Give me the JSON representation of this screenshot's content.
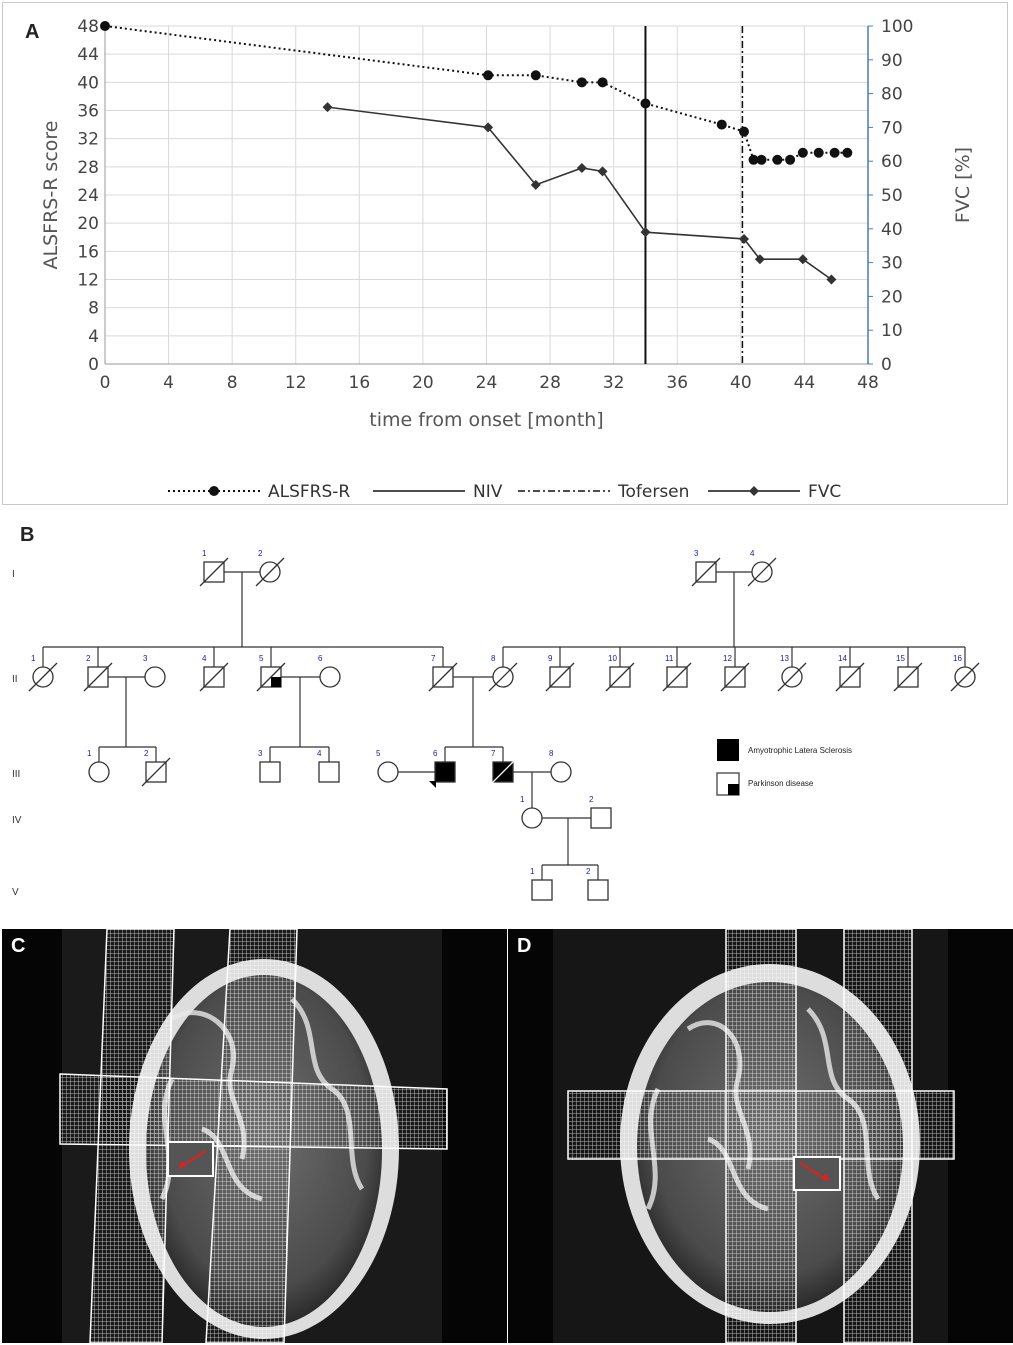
{
  "panels": {
    "a": "A",
    "b": "B",
    "c": "C",
    "d": "D"
  },
  "chart_data": {
    "type": "line",
    "title": "",
    "xlabel": "time from onset [month]",
    "ylabel": "ALSFRS-R score",
    "y2label": "FVC [%]",
    "xlim": [
      0,
      48
    ],
    "ylim": [
      0,
      48
    ],
    "y2lim": [
      0,
      100
    ],
    "x_ticks": [
      0,
      4,
      8,
      12,
      16,
      20,
      24,
      28,
      32,
      36,
      40,
      44,
      48
    ],
    "y_ticks": [
      0,
      4,
      8,
      12,
      16,
      20,
      24,
      28,
      32,
      36,
      40,
      44,
      48
    ],
    "y2_ticks": [
      0,
      10,
      20,
      30,
      40,
      50,
      60,
      70,
      80,
      90,
      100
    ],
    "grid": true,
    "legend_position": "bottom",
    "series": [
      {
        "name": "ALSFRS-R",
        "axis": "left",
        "style": "dotted",
        "marker": "circle",
        "color": "#111111",
        "points": [
          [
            0,
            48
          ],
          [
            24.1,
            41
          ],
          [
            27.1,
            41
          ],
          [
            30,
            40
          ],
          [
            31.3,
            40
          ],
          [
            34,
            37
          ],
          [
            38.8,
            34
          ],
          [
            40.2,
            33
          ],
          [
            40.8,
            29
          ],
          [
            41.3,
            29
          ],
          [
            42.3,
            29
          ],
          [
            43.1,
            29
          ],
          [
            43.9,
            30
          ],
          [
            44.9,
            30
          ],
          [
            45.9,
            30
          ],
          [
            46.7,
            30
          ]
        ]
      },
      {
        "name": "FVC",
        "axis": "right",
        "style": "solid",
        "marker": "diamond",
        "color": "#333333",
        "points": [
          [
            14,
            76
          ],
          [
            24.1,
            70
          ],
          [
            27.1,
            53
          ],
          [
            30,
            58
          ],
          [
            31.3,
            57
          ],
          [
            34,
            39
          ],
          [
            40.2,
            37
          ],
          [
            41.2,
            31
          ],
          [
            43.9,
            31
          ],
          [
            45.7,
            25
          ]
        ]
      }
    ],
    "vertical_lines": [
      {
        "name": "NIV",
        "x": 34,
        "style": "solid"
      },
      {
        "name": "Tofersen",
        "x": 40.1,
        "style": "dashdot"
      }
    ],
    "legend": [
      "ALSFRS-R",
      "NIV",
      "Tofersen",
      "FVC"
    ]
  },
  "pedigree": {
    "generations": [
      "I",
      "II",
      "III",
      "IV",
      "V"
    ],
    "legend": {
      "als": "Amyotrophic Latera Sclerosis",
      "parkinson": "Parkinson disease"
    },
    "colors": {
      "line": "#333333",
      "number": "#1a1aa6"
    },
    "individuals": [
      {
        "gen": "I",
        "id": "1",
        "sex": "male",
        "deceased": true,
        "status": "unaffected"
      },
      {
        "gen": "I",
        "id": "2",
        "sex": "female",
        "deceased": true,
        "status": "unaffected"
      },
      {
        "gen": "I",
        "id": "3",
        "sex": "male",
        "deceased": true,
        "status": "unaffected"
      },
      {
        "gen": "I",
        "id": "4",
        "sex": "female",
        "deceased": true,
        "status": "unaffected"
      },
      {
        "gen": "II",
        "id": "1",
        "sex": "female",
        "deceased": true,
        "status": "unaffected"
      },
      {
        "gen": "II",
        "id": "2",
        "sex": "male",
        "deceased": true,
        "status": "unaffected"
      },
      {
        "gen": "II",
        "id": "3",
        "sex": "female",
        "deceased": false,
        "status": "unaffected"
      },
      {
        "gen": "II",
        "id": "4",
        "sex": "male",
        "deceased": true,
        "status": "unaffected"
      },
      {
        "gen": "II",
        "id": "5",
        "sex": "male",
        "deceased": true,
        "status": "parkinson"
      },
      {
        "gen": "II",
        "id": "6",
        "sex": "female",
        "deceased": false,
        "status": "unaffected"
      },
      {
        "gen": "II",
        "id": "7",
        "sex": "male",
        "deceased": true,
        "status": "unaffected"
      },
      {
        "gen": "II",
        "id": "8",
        "sex": "female",
        "deceased": true,
        "status": "unaffected"
      },
      {
        "gen": "II",
        "id": "9",
        "sex": "male",
        "deceased": true,
        "status": "unaffected"
      },
      {
        "gen": "II",
        "id": "10",
        "sex": "male",
        "deceased": true,
        "status": "unaffected"
      },
      {
        "gen": "II",
        "id": "11",
        "sex": "male",
        "deceased": true,
        "status": "unaffected"
      },
      {
        "gen": "II",
        "id": "12",
        "sex": "male",
        "deceased": true,
        "status": "unaffected"
      },
      {
        "gen": "II",
        "id": "13",
        "sex": "female",
        "deceased": true,
        "status": "unaffected"
      },
      {
        "gen": "II",
        "id": "14",
        "sex": "male",
        "deceased": true,
        "status": "unaffected"
      },
      {
        "gen": "II",
        "id": "15",
        "sex": "male",
        "deceased": true,
        "status": "unaffected"
      },
      {
        "gen": "II",
        "id": "16",
        "sex": "female",
        "deceased": true,
        "status": "unaffected"
      },
      {
        "gen": "III",
        "id": "1",
        "sex": "female",
        "deceased": false,
        "status": "unaffected"
      },
      {
        "gen": "III",
        "id": "2",
        "sex": "male",
        "deceased": true,
        "status": "unaffected"
      },
      {
        "gen": "III",
        "id": "3",
        "sex": "male",
        "deceased": false,
        "status": "unaffected"
      },
      {
        "gen": "III",
        "id": "4",
        "sex": "male",
        "deceased": false,
        "status": "unaffected"
      },
      {
        "gen": "III",
        "id": "5",
        "sex": "female",
        "deceased": false,
        "status": "unaffected"
      },
      {
        "gen": "III",
        "id": "6",
        "sex": "male",
        "deceased": false,
        "status": "als",
        "proband": true
      },
      {
        "gen": "III",
        "id": "7",
        "sex": "male",
        "deceased": true,
        "status": "als"
      },
      {
        "gen": "III",
        "id": "8",
        "sex": "female",
        "deceased": false,
        "status": "unaffected"
      },
      {
        "gen": "IV",
        "id": "1",
        "sex": "female",
        "deceased": false,
        "status": "unaffected"
      },
      {
        "gen": "IV",
        "id": "2",
        "sex": "male",
        "deceased": false,
        "status": "unaffected"
      },
      {
        "gen": "V",
        "id": "1",
        "sex": "male",
        "deceased": false,
        "status": "unaffected"
      },
      {
        "gen": "V",
        "id": "2",
        "sex": "male",
        "deceased": false,
        "status": "unaffected"
      }
    ]
  },
  "mri": {
    "arrow_color": "#e02020"
  }
}
